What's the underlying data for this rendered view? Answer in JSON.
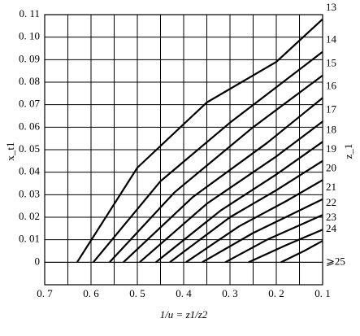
{
  "chart_data": {
    "type": "line",
    "x_label": "1/u = z1/z2",
    "y_label": "x_t1",
    "y2_label": "z_1",
    "xlim": [
      0.7,
      0.1
    ],
    "ylim": [
      -0.01,
      0.11
    ],
    "xticks": [
      {
        "value": 0.7,
        "label": "0. 7"
      },
      {
        "value": 0.6,
        "label": "0. 6"
      },
      {
        "value": 0.5,
        "label": "0. 5"
      },
      {
        "value": 0.4,
        "label": "0. 4"
      },
      {
        "value": 0.3,
        "label": "0. 3"
      },
      {
        "value": 0.2,
        "label": "0. 2"
      },
      {
        "value": 0.1,
        "label": "0. 1"
      }
    ],
    "xminor": [
      0.65,
      0.55,
      0.45,
      0.35,
      0.25,
      0.15
    ],
    "yticks": [
      0,
      {
        "value": 0.01,
        "label": "0. 01"
      },
      {
        "value": 0.02,
        "label": "0. 02"
      },
      {
        "value": 0.03,
        "label": "0. 03"
      },
      {
        "value": 0.04,
        "label": "0. 04"
      },
      {
        "value": 0.05,
        "label": "0. 05"
      },
      {
        "value": 0.06,
        "label": "0. 06"
      },
      {
        "value": 0.07,
        "label": "0. 07"
      },
      {
        "value": 0.08,
        "label": "0. 08"
      },
      {
        "value": 0.09,
        "label": "0. 09"
      },
      {
        "value": 0.1,
        "label": "0. 10"
      },
      {
        "value": 0.11,
        "label": "0. 11"
      }
    ],
    "grid": true,
    "series": [
      {
        "name": "13",
        "color": "#000000",
        "x": [
          0.63,
          0.5,
          0.35,
          0.2,
          0.1
        ],
        "values": [
          0,
          0.042,
          0.071,
          0.089,
          0.108
        ]
      },
      {
        "name": "14",
        "color": "#000000",
        "x": [
          0.595,
          0.45,
          0.3,
          0.1
        ],
        "values": [
          0,
          0.036,
          0.062,
          0.0935
        ]
      },
      {
        "name": "15",
        "color": "#000000",
        "x": [
          0.56,
          0.42,
          0.25,
          0.1
        ],
        "values": [
          0,
          0.031,
          0.06,
          0.083
        ]
      },
      {
        "name": "16",
        "color": "#000000",
        "x": [
          0.53,
          0.38,
          0.22,
          0.1
        ],
        "values": [
          0,
          0.029,
          0.053,
          0.073
        ]
      },
      {
        "name": "17",
        "color": "#000000",
        "x": [
          0.495,
          0.35,
          0.2,
          0.1
        ],
        "values": [
          0,
          0.026,
          0.047,
          0.0625
        ]
      },
      {
        "name": "18",
        "color": "#000000",
        "x": [
          0.46,
          0.32,
          0.2,
          0.1
        ],
        "values": [
          0,
          0.023,
          0.039,
          0.0535
        ]
      },
      {
        "name": "19",
        "color": "#000000",
        "x": [
          0.43,
          0.3,
          0.2,
          0.1
        ],
        "values": [
          0,
          0.02,
          0.032,
          0.045
        ]
      },
      {
        "name": "20",
        "color": "#000000",
        "x": [
          0.395,
          0.28,
          0.18,
          0.1
        ],
        "values": [
          0,
          0.016,
          0.027,
          0.0365
        ]
      },
      {
        "name": "21",
        "color": "#000000",
        "x": [
          0.36,
          0.25,
          0.17,
          0.1
        ],
        "values": [
          0,
          0.013,
          0.021,
          0.028
        ]
      },
      {
        "name": "22",
        "color": "#000000",
        "x": [
          0.31,
          0.22,
          0.1
        ],
        "values": [
          0,
          0.01,
          0.021
        ]
      },
      {
        "name": "23",
        "color": "#000000",
        "x": [
          0.26,
          0.18,
          0.1
        ],
        "values": [
          0,
          0.0075,
          0.0145
        ]
      },
      {
        "name": "24",
        "color": "#000000",
        "x": [
          0.19,
          0.14,
          0.1
        ],
        "values": [
          0,
          0.005,
          0.0095
        ]
      },
      {
        "name": "⩾25",
        "color": "#000000",
        "x": [
          0.7,
          0.1
        ],
        "values": [
          0,
          0
        ]
      }
    ]
  }
}
